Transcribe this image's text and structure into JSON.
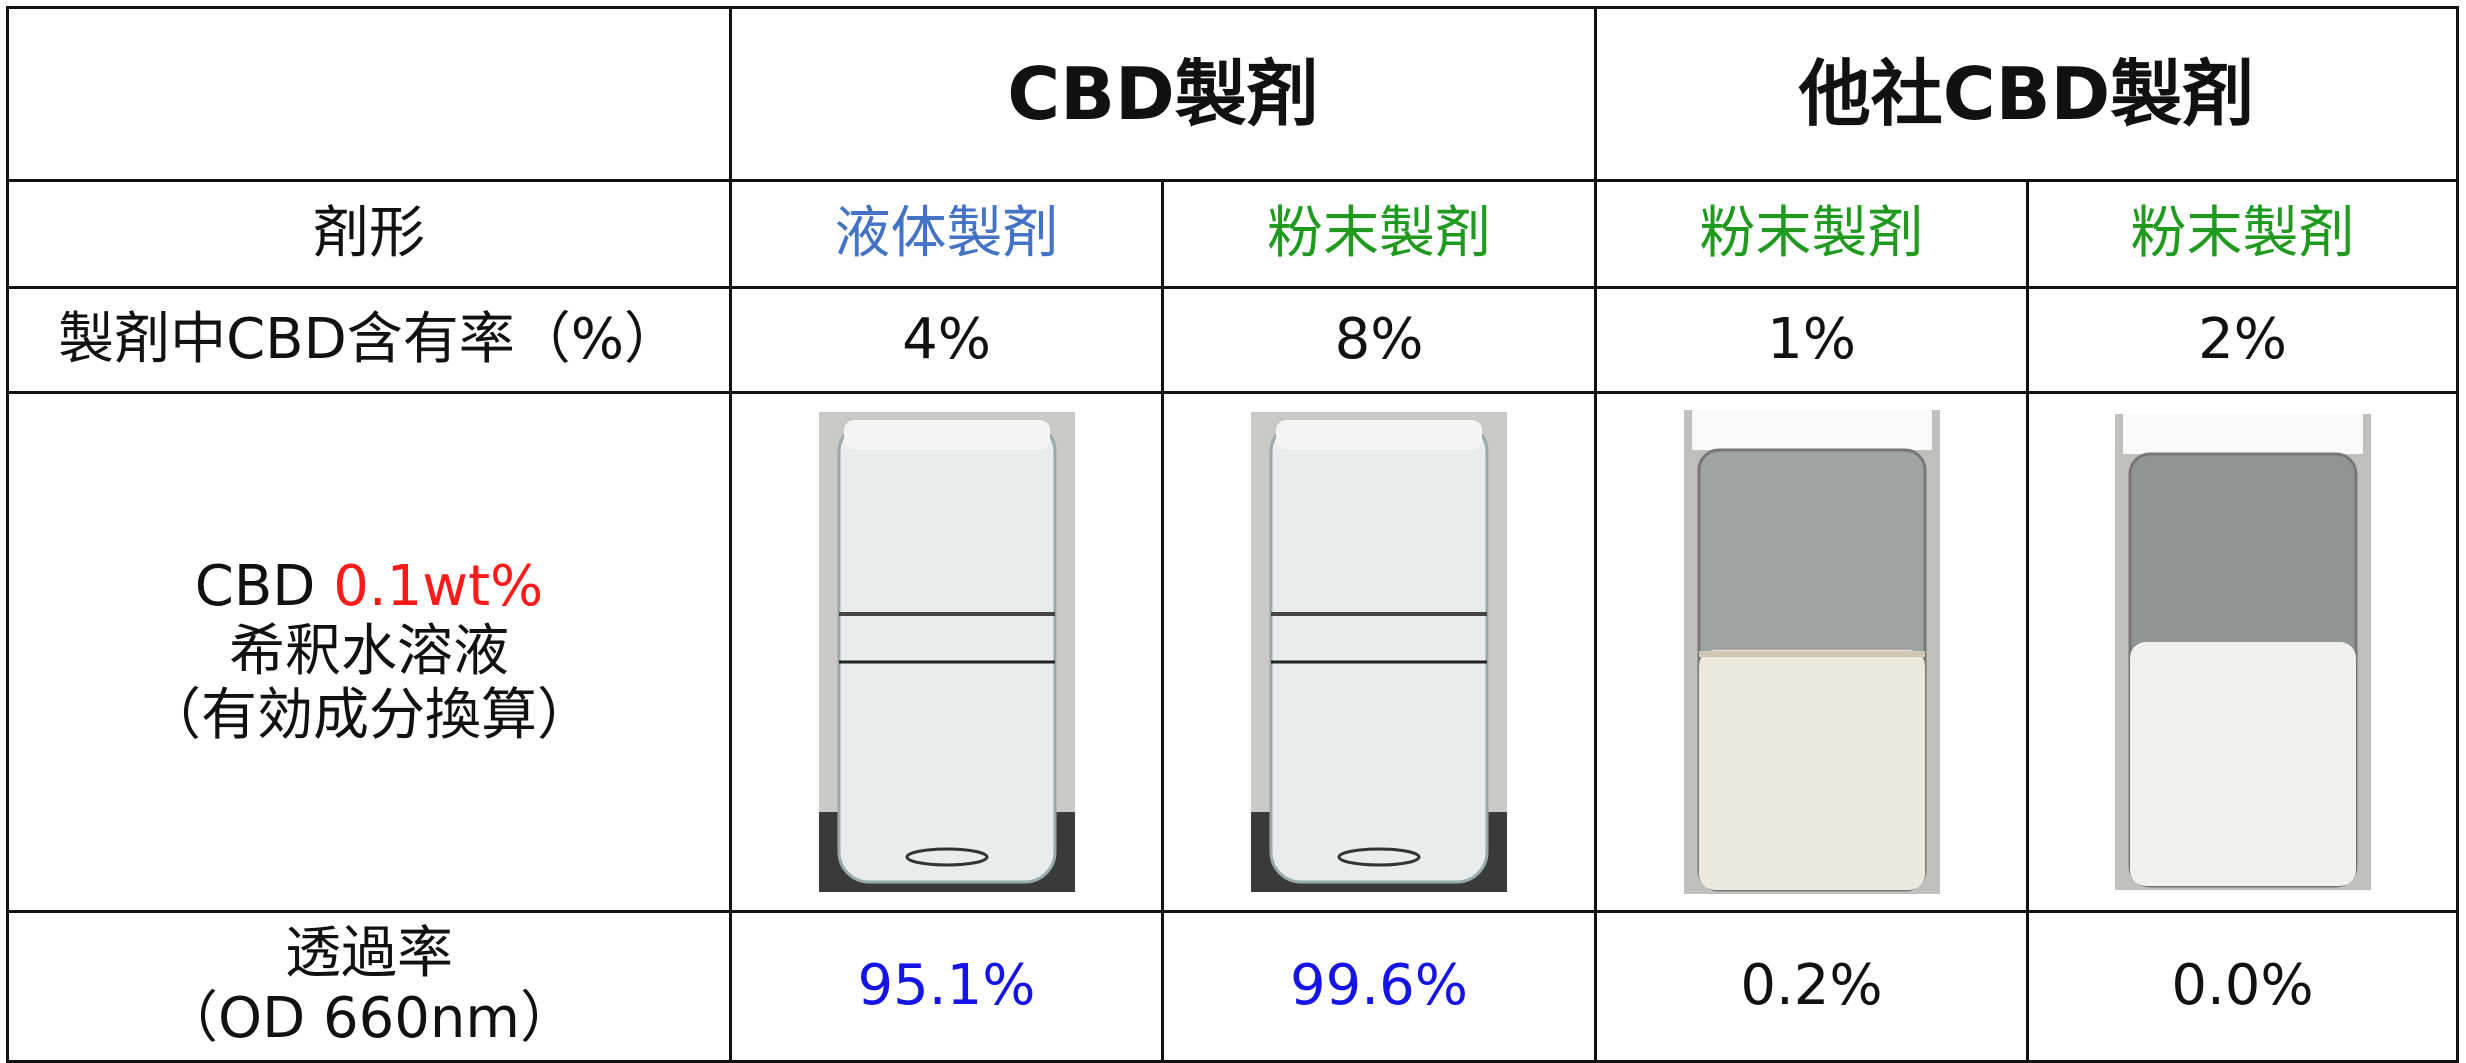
{
  "table": {
    "groups": [
      "CBD製剤",
      "他社CBD製剤"
    ],
    "rows": [
      {
        "label": "剤形",
        "cells": [
          "液体製剤",
          "粉末製剤",
          "粉末製剤",
          "粉末製剤"
        ]
      },
      {
        "label": "製剤中CBD含有率（%）",
        "cells": [
          "4%",
          "8%",
          "1%",
          "2%"
        ]
      },
      {
        "label_prefix": "CBD",
        "label_highlight": "0.1wt%",
        "label_line2": "希釈水溶液",
        "label_line3": "（有効成分換算）"
      },
      {
        "label_line1": "透過率",
        "label_line2": "（OD 660nm）",
        "cells": [
          "95.1%",
          "99.6%",
          "0.2%",
          "0.0%"
        ]
      }
    ]
  }
}
